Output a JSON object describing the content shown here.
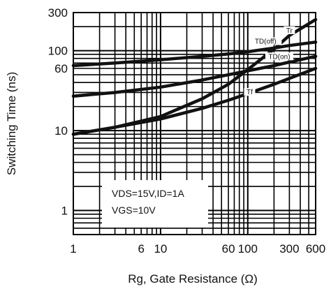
{
  "chart_data": {
    "type": "line",
    "xlabel": "Rg, Gate Resistance (Ω)",
    "ylabel": "Switching Time (ns)",
    "xscale": "log",
    "yscale": "log",
    "xlim": [
      1,
      600
    ],
    "ylim": [
      0.5,
      300
    ],
    "xtick_labels": [
      "1",
      "6",
      "10",
      "60",
      "100",
      "300",
      "600"
    ],
    "xticks": [
      1,
      6,
      10,
      60,
      100,
      300,
      600
    ],
    "ytick_labels": [
      "1",
      "10",
      "60",
      "100",
      "300"
    ],
    "yticks": [
      1,
      10,
      60,
      100,
      300
    ],
    "grid": true,
    "annotations": [
      "VDS=15V,ID=1A",
      "VGS=10V"
    ],
    "series": [
      {
        "name": "Tr",
        "x": [
          1,
          3,
          10,
          30,
          60,
          100,
          200,
          300,
          600
        ],
        "y": [
          9,
          11,
          15,
          25,
          38,
          58,
          105,
          155,
          245
        ]
      },
      {
        "name": "TD(off)",
        "x": [
          1,
          3,
          10,
          30,
          60,
          100,
          200,
          300,
          600
        ],
        "y": [
          65,
          70,
          77,
          85,
          91,
          97,
          108,
          116,
          128
        ]
      },
      {
        "name": "TD(on)",
        "x": [
          1,
          3,
          10,
          30,
          60,
          100,
          200,
          300,
          600
        ],
        "y": [
          27,
          30,
          35,
          43,
          50,
          56,
          65,
          72,
          85
        ]
      },
      {
        "name": "Tf",
        "x": [
          1,
          3,
          10,
          30,
          60,
          100,
          200,
          300,
          600
        ],
        "y": [
          9,
          11,
          14,
          19,
          24,
          29,
          38,
          45,
          60
        ]
      }
    ]
  }
}
